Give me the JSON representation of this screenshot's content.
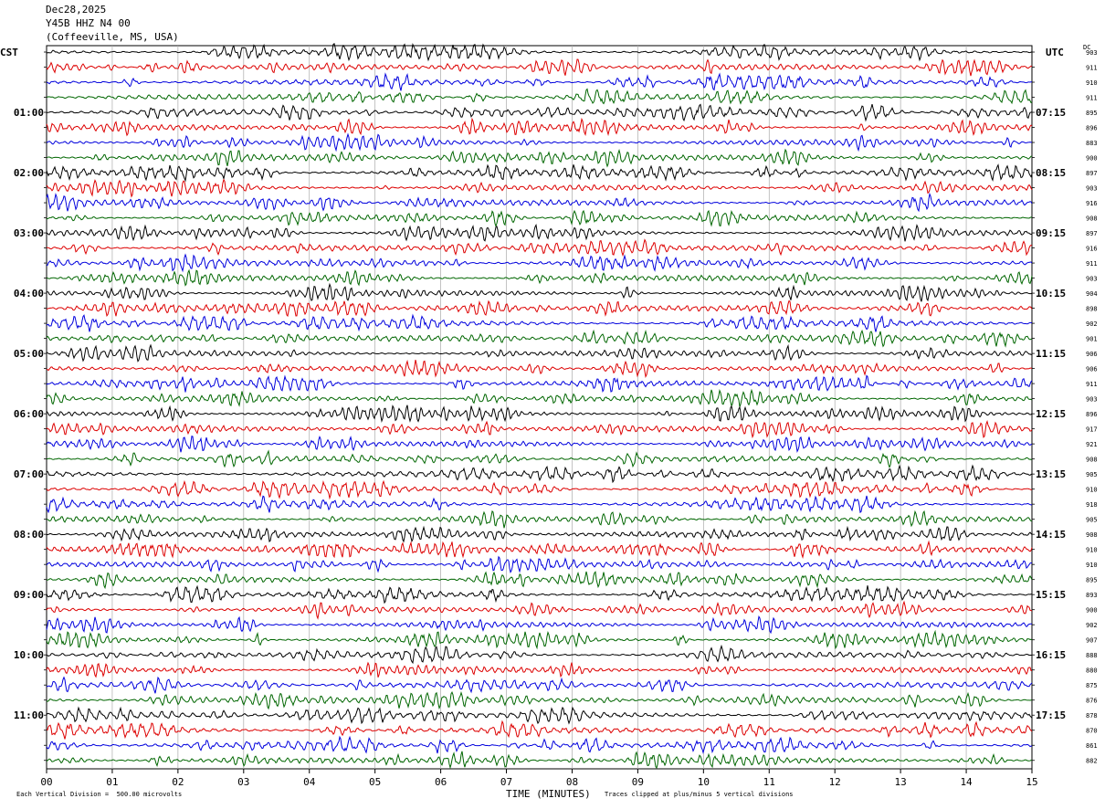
{
  "header": {
    "date": "Dec28,2025",
    "station": "Y45B HHZ N4 00",
    "location": "(Coffeeville, MS, USA)"
  },
  "left_label": "CST",
  "right_label": "UTC",
  "dc_label": "DC",
  "footer": {
    "scale_note": "Each Vertical Division =  500.00 microvolts",
    "clip_note": "Traces clipped at plus/minus 5 vertical divisions"
  },
  "trace_colors": [
    "#000000",
    "#dd0000",
    "#0000dd",
    "#006600"
  ],
  "chart_data": {
    "type": "line",
    "title": "",
    "xlabel": "TIME (MINUTES)",
    "ylabel": "",
    "xlim": [
      0,
      15
    ],
    "x_ticks": [
      "00",
      "01",
      "02",
      "03",
      "04",
      "05",
      "06",
      "07",
      "08",
      "09",
      "10",
      "11",
      "12",
      "13",
      "14",
      "15"
    ],
    "rows_per_hour": 4,
    "minutes_per_row": 15,
    "cst_labels": [
      {
        "row": 4,
        "label": "01:00"
      },
      {
        "row": 8,
        "label": "02:00"
      },
      {
        "row": 12,
        "label": "03:00"
      },
      {
        "row": 16,
        "label": "04:00"
      },
      {
        "row": 20,
        "label": "05:00"
      },
      {
        "row": 24,
        "label": "06:00"
      },
      {
        "row": 28,
        "label": "07:00"
      },
      {
        "row": 32,
        "label": "08:00"
      },
      {
        "row": 36,
        "label": "09:00"
      },
      {
        "row": 40,
        "label": "10:00"
      },
      {
        "row": 44,
        "label": "11:00"
      }
    ],
    "utc_labels": [
      {
        "row": 4,
        "label": "07:15"
      },
      {
        "row": 8,
        "label": "08:15"
      },
      {
        "row": 12,
        "label": "09:15"
      },
      {
        "row": 16,
        "label": "10:15"
      },
      {
        "row": 20,
        "label": "11:15"
      },
      {
        "row": 24,
        "label": "12:15"
      },
      {
        "row": 28,
        "label": "13:15"
      },
      {
        "row": 32,
        "label": "14:15"
      },
      {
        "row": 36,
        "label": "15:15"
      },
      {
        "row": 40,
        "label": "16:15"
      },
      {
        "row": 44,
        "label": "17:15"
      }
    ],
    "dc_values": [
      903,
      911,
      910,
      911,
      895,
      896,
      883,
      900,
      897,
      903,
      916,
      908,
      897,
      916,
      911,
      903,
      904,
      898,
      902,
      901,
      906,
      906,
      911,
      903,
      896,
      917,
      921,
      908,
      905,
      910,
      918,
      905,
      908,
      910,
      910,
      895,
      893,
      900,
      902,
      907,
      888,
      880,
      875,
      876,
      878,
      870,
      861,
      882
    ],
    "series_colors_cycle": [
      "black",
      "red",
      "blue",
      "green"
    ]
  }
}
